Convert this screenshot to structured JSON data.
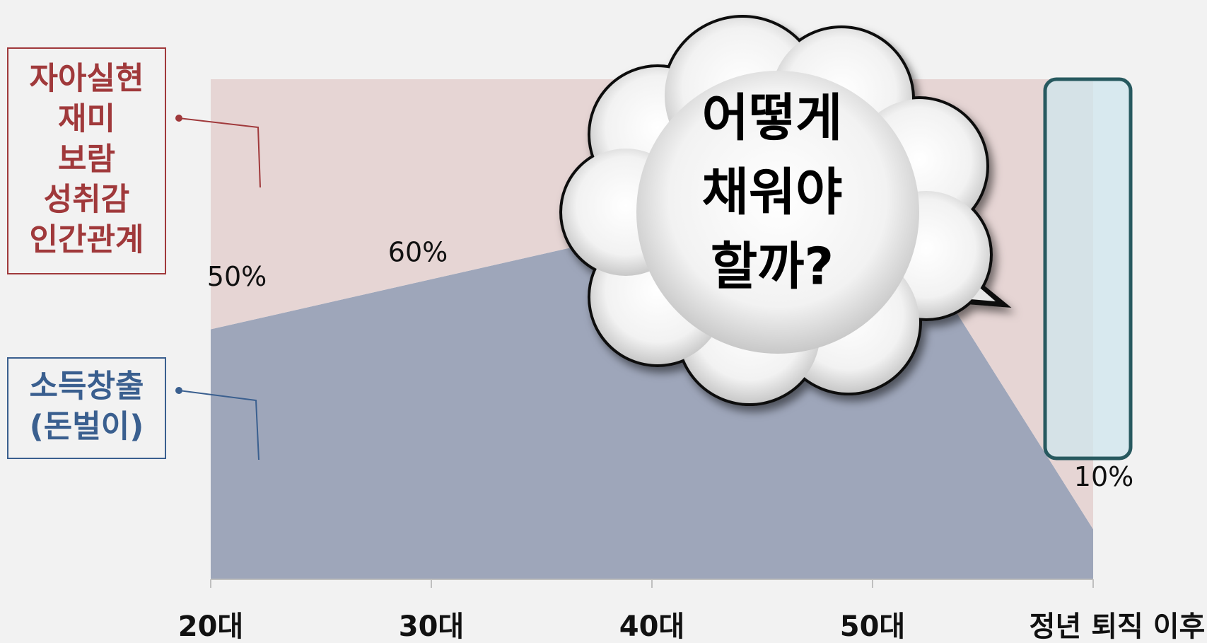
{
  "chart_data": {
    "type": "stacked-area",
    "categories": [
      "20대",
      "30대",
      "40대",
      "50대",
      "정년 퇴직 이후"
    ],
    "series": [
      {
        "name": [
          "소득창출",
          "(돈벌이)"
        ],
        "color": "#9ea6ba",
        "label_color": "#3a5f8f",
        "values": [
          50,
          60,
          70,
          80,
          10
        ],
        "value_labels": [
          "50%",
          "60%",
          null,
          null,
          "10%"
        ]
      },
      {
        "name": [
          "자아실현",
          "재미",
          "보람",
          "성취감",
          "인간관계"
        ],
        "color": "#e6d5d4",
        "label_color": "#a0393b",
        "values": [
          50,
          40,
          30,
          20,
          90
        ]
      }
    ],
    "ylim": [
      0,
      100
    ],
    "annotation": [
      "어떻게",
      "채워야",
      "할까?"
    ]
  }
}
